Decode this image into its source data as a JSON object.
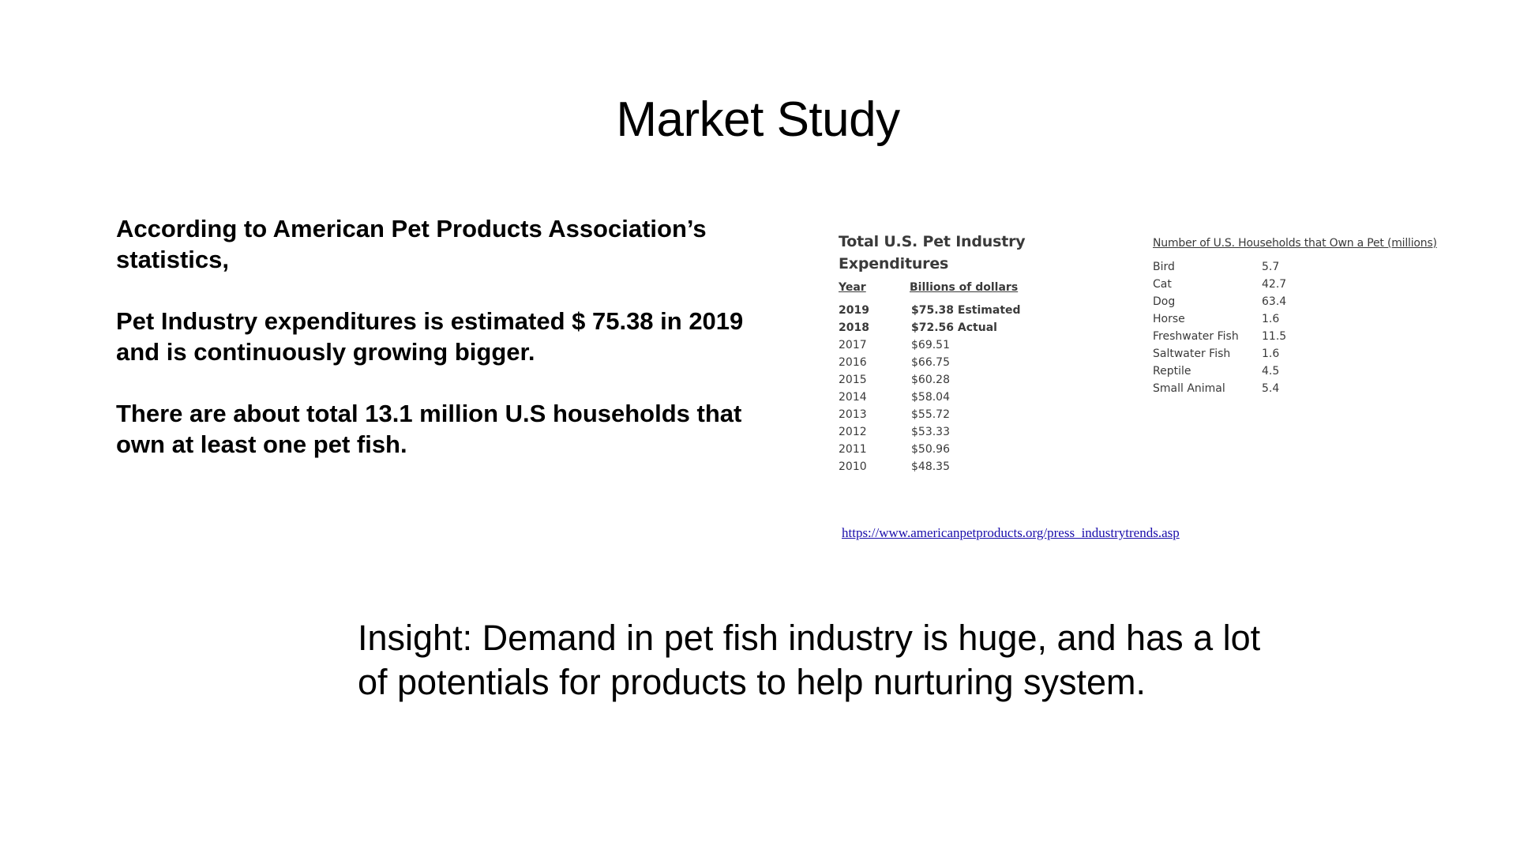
{
  "slide": {
    "title": "Market Study"
  },
  "left_text": {
    "para1": "According to American Pet Products Association’s statistics,",
    "para2": "Pet Industry expenditures is estimated $ 75.38 in 2019 and is continuously growing bigger.",
    "para3": "There are about total 13.1 million U.S households that own at least one pet fish."
  },
  "expenditures": {
    "title": "Total U.S. Pet Industry Expenditures",
    "col_year": "Year",
    "col_value": "Billions of dollars",
    "rows": [
      {
        "year": "2019",
        "value": "$75.38 Estimated"
      },
      {
        "year": "2018",
        "value": "$72.56 Actual"
      },
      {
        "year": "2017",
        "value": "$69.51"
      },
      {
        "year": "2016",
        "value": "$66.75"
      },
      {
        "year": "2015",
        "value": "$60.28"
      },
      {
        "year": "2014",
        "value": "$58.04"
      },
      {
        "year": "2013",
        "value": "$55.72"
      },
      {
        "year": "2012",
        "value": "$53.33"
      },
      {
        "year": "2011",
        "value": "$50.96"
      },
      {
        "year": "2010",
        "value": "$48.35"
      }
    ]
  },
  "households": {
    "title": "Number of U.S. Households that Own a Pet (millions)",
    "rows": [
      {
        "pet": "Bird",
        "value": "5.7"
      },
      {
        "pet": "Cat",
        "value": "42.7"
      },
      {
        "pet": "Dog",
        "value": "63.4"
      },
      {
        "pet": "Horse",
        "value": "1.6"
      },
      {
        "pet": "Freshwater Fish",
        "value": "11.5"
      },
      {
        "pet": "Saltwater Fish",
        "value": "1.6"
      },
      {
        "pet": "Reptile",
        "value": "4.5"
      },
      {
        "pet": "Small Animal",
        "value": "5.4"
      }
    ]
  },
  "source": {
    "link_text": "https://www.americanpetproducts.org/press_industrytrends.asp"
  },
  "insight": {
    "text": "Insight: Demand in pet fish industry is huge, and has a lot of potentials for products to help nurturing system."
  }
}
